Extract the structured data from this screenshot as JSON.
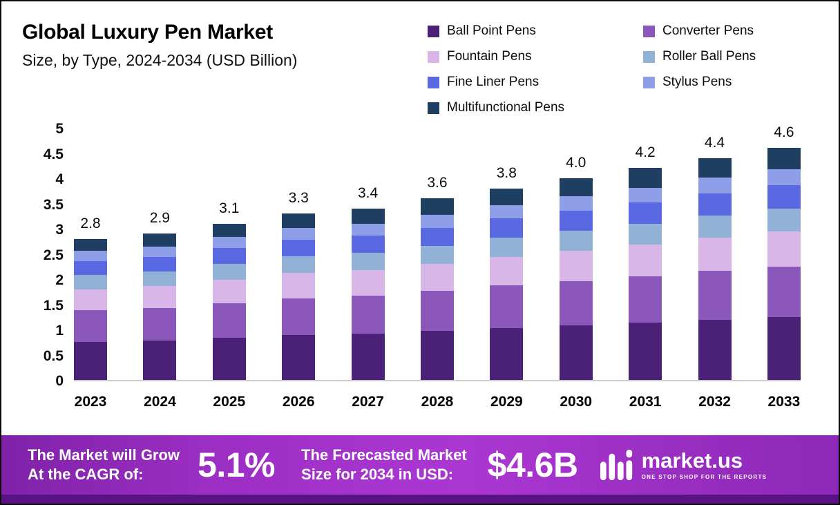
{
  "header": {
    "title": "Global Luxury Pen Market",
    "subtitle": "Size, by Type, 2024-2034 (USD Billion)"
  },
  "chart_data": {
    "type": "bar",
    "stacked": true,
    "title": "Global Luxury Pen Market Size, by Type, 2024-2034 (USD Billion)",
    "xlabel": "",
    "ylabel": "",
    "ylim": [
      0,
      5
    ],
    "yticks": [
      0,
      0.5,
      1,
      1.5,
      2,
      2.5,
      3,
      3.5,
      4,
      4.5,
      5
    ],
    "grid": false,
    "legend_position": "top-right",
    "categories": [
      "2023",
      "2024",
      "2025",
      "2026",
      "2027",
      "2028",
      "2029",
      "2030",
      "2031",
      "2032",
      "2033"
    ],
    "totals": [
      2.8,
      2.9,
      3.1,
      3.3,
      3.4,
      3.6,
      3.8,
      4.0,
      4.2,
      4.4,
      4.6
    ],
    "total_labels": [
      "2.8",
      "2.9",
      "3.1",
      "3.3",
      "3.4",
      "3.6",
      "3.8",
      "4.0",
      "4.2",
      "4.4",
      "4.6"
    ],
    "series": [
      {
        "name": "Ball Point Pens",
        "color": "#4b2178",
        "values": [
          0.76,
          0.78,
          0.84,
          0.89,
          0.92,
          0.97,
          1.03,
          1.08,
          1.13,
          1.19,
          1.24
        ]
      },
      {
        "name": "Converter Pens",
        "color": "#8b57ba",
        "values": [
          0.62,
          0.64,
          0.68,
          0.73,
          0.75,
          0.79,
          0.84,
          0.88,
          0.92,
          0.97,
          1.01
        ]
      },
      {
        "name": "Fountain Pens",
        "color": "#d9b6e8",
        "values": [
          0.42,
          0.44,
          0.47,
          0.5,
          0.51,
          0.54,
          0.57,
          0.6,
          0.63,
          0.66,
          0.69
        ]
      },
      {
        "name": "Roller Ball Pens",
        "color": "#92b1d6",
        "values": [
          0.28,
          0.29,
          0.31,
          0.33,
          0.34,
          0.36,
          0.38,
          0.4,
          0.42,
          0.44,
          0.46
        ]
      },
      {
        "name": "Fine Liner Pens",
        "color": "#5a68e2",
        "values": [
          0.28,
          0.29,
          0.31,
          0.33,
          0.34,
          0.36,
          0.38,
          0.4,
          0.42,
          0.44,
          0.46
        ]
      },
      {
        "name": "Stylus Pens",
        "color": "#8f9ee9",
        "values": [
          0.2,
          0.2,
          0.22,
          0.23,
          0.24,
          0.25,
          0.27,
          0.28,
          0.29,
          0.31,
          0.32
        ]
      },
      {
        "name": "Multifunctional Pens",
        "color": "#1e3e62",
        "values": [
          0.24,
          0.26,
          0.27,
          0.29,
          0.3,
          0.33,
          0.33,
          0.36,
          0.39,
          0.39,
          0.42
        ]
      }
    ]
  },
  "footer": {
    "cagr_label_line1": "The Market will Grow",
    "cagr_label_line2": "At the CAGR of:",
    "cagr_value": "5.1%",
    "forecast_label_line1": "The Forecasted Market",
    "forecast_label_line2": "Size for 2034 in USD:",
    "forecast_value": "$4.6B",
    "brand": "market.us",
    "brand_tagline": "ONE STOP SHOP FOR THE REPORTS",
    "accent_gradient": [
      "#7f22a8",
      "#ab37d2",
      "#8d28b8"
    ],
    "strip_color": "#5a1184"
  }
}
